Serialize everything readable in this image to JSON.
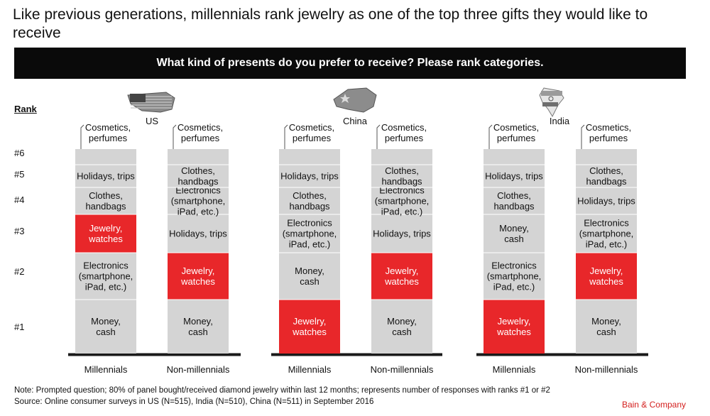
{
  "title": "Like previous generations, millennials rank jewelry as one of the top three gifts they would like to receive",
  "banner": "What kind of presents do you prefer to receive? Please rank categories.",
  "rank_header": "Rank",
  "rank_labels": [
    "#6",
    "#5",
    "#4",
    "#3",
    "#2",
    "#1"
  ],
  "footnotes": [
    "Note: Prompted question; 80% of panel bought/received diamond jewelry within last 12 months; represents number of responses with ranks #1 or #2",
    "Source: Online consumer surveys in US (N=515), India (N=510), China (N=511) in September 2016"
  ],
  "brand": "Bain & Company",
  "colors": {
    "highlight": "#e8272a",
    "bar": "#d4d4d4",
    "divider": "#ffffff",
    "baseline": "#1a1a1a"
  },
  "chart_data": {
    "type": "bar",
    "subtype": "stacked-rank-columns",
    "note": "Each column stacks categories from rank #1 (bottom) to #6 (top).",
    "groups": [
      {
        "country": "US",
        "flag_icon": "us-flag-map-icon",
        "columns": [
          {
            "name": "Millennials",
            "ranked": [
              "Money, cash",
              "Electronics (smartphone, iPad, etc.)",
              "Jewelry, watches",
              "Clothes, handbags",
              "Holidays, trips",
              "Cosmetics, perfumes"
            ],
            "highlight": "Jewelry, watches"
          },
          {
            "name": "Non-millennials",
            "ranked": [
              "Money, cash",
              "Jewelry, watches",
              "Holidays, trips",
              "Electronics (smartphone, iPad, etc.)",
              "Clothes, handbags",
              "Cosmetics, perfumes"
            ],
            "highlight": "Jewelry, watches"
          }
        ]
      },
      {
        "country": "China",
        "flag_icon": "china-flag-map-icon",
        "columns": [
          {
            "name": "Millennials",
            "ranked": [
              "Jewelry, watches",
              "Money, cash",
              "Electronics (smartphone, iPad, etc.)",
              "Clothes, handbags",
              "Holidays, trips",
              "Cosmetics, perfumes"
            ],
            "highlight": "Jewelry, watches"
          },
          {
            "name": "Non-millennials",
            "ranked": [
              "Money, cash",
              "Jewelry, watches",
              "Holidays, trips",
              "Electronics (smartphone, iPad, etc.)",
              "Clothes, handbags",
              "Cosmetics, perfumes"
            ],
            "highlight": "Jewelry, watches"
          }
        ]
      },
      {
        "country": "India",
        "flag_icon": "india-flag-map-icon",
        "columns": [
          {
            "name": "Millennials",
            "ranked": [
              "Jewelry, watches",
              "Electronics (smartphone, iPad, etc.)",
              "Money, cash",
              "Clothes, handbags",
              "Holidays, trips",
              "Cosmetics, perfumes"
            ],
            "highlight": "Jewelry, watches"
          },
          {
            "name": "Non-millennials",
            "ranked": [
              "Money, cash",
              "Jewelry, watches",
              "Electronics (smartphone, iPad, etc.)",
              "Holidays, trips",
              "Clothes, handbags",
              "Cosmetics, perfumes"
            ],
            "highlight": "Jewelry, watches"
          }
        ]
      }
    ]
  }
}
